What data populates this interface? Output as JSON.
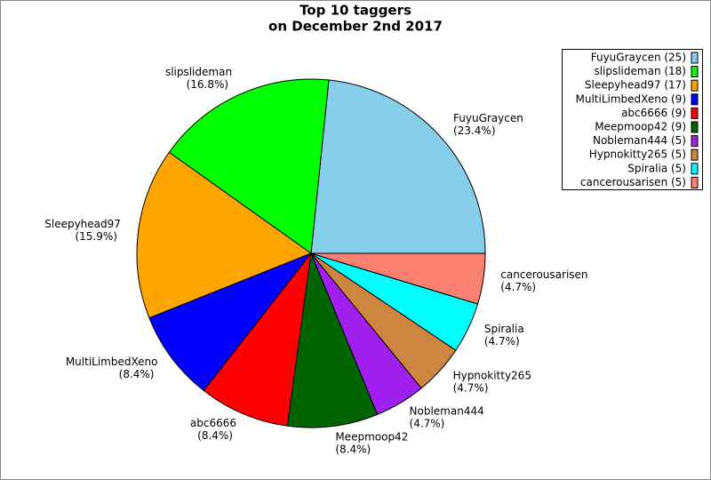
{
  "chart_data": {
    "type": "pie",
    "title": [
      "Top 10 taggers",
      "on December 2nd 2017"
    ],
    "categories": [
      "FuyuGraycen",
      "slipslideman",
      "Sleepyhead97",
      "MultiLimbedXeno",
      "abc6666",
      "Meepmoop42",
      "Nobleman444",
      "Hypnokitty265",
      "Spiralia",
      "cancerousarisen"
    ],
    "values": [
      23.4,
      16.8,
      15.9,
      8.4,
      8.4,
      8.4,
      4.7,
      4.7,
      4.7,
      4.7
    ],
    "value_labels": [
      "(23.4%)",
      "(16.8%)",
      "(15.9%)",
      "(8.4%)",
      "(8.4%)",
      "(8.4%)",
      "(4.7%)",
      "(4.7%)",
      "(4.7%)",
      "(4.7%)"
    ],
    "colors": [
      "#87ceeb",
      "#00ff00",
      "#ffa500",
      "#0000ff",
      "#ff0000",
      "#006400",
      "#a020f0",
      "#cd853f",
      "#00ffff",
      "#fa8072"
    ],
    "legend": [
      "FuyuGraycen (25)",
      "slipslideman (18)",
      "Sleepyhead97 (17)",
      "MultiLimbedXeno (9)",
      "abc6666 (9)",
      "Meepmoop42 (9)",
      "Nobleman444 (5)",
      "Hypnokitty265 (5)",
      "Spiralia (5)",
      "cancerousarisen (5)"
    ],
    "legend_position": "upper right"
  }
}
